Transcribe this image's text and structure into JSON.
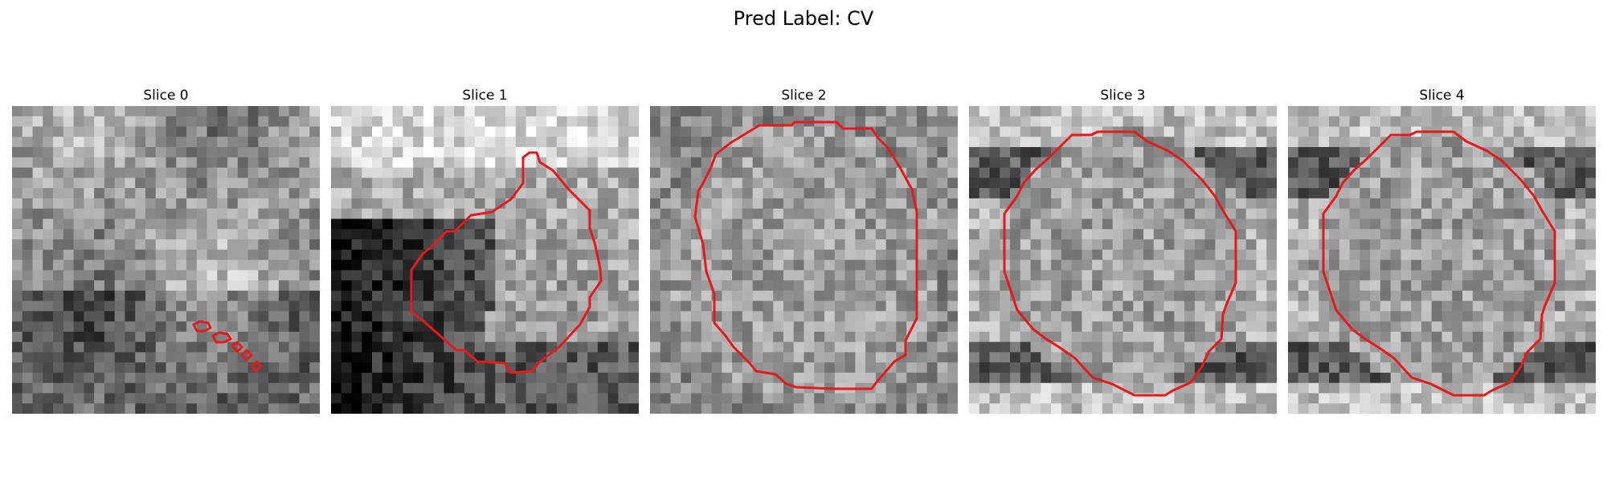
{
  "figure": {
    "title": "Pred Label: CV",
    "contour_color": "#e41a1c"
  },
  "slices": [
    {
      "label": "Slice 0",
      "seed": 11,
      "style": "cloudy"
    },
    {
      "label": "Slice 1",
      "seed": 23,
      "style": "dark-lower-left"
    },
    {
      "label": "Slice 2",
      "seed": 37,
      "style": "uniform"
    },
    {
      "label": "Slice 3",
      "seed": 41,
      "style": "dark-bands"
    },
    {
      "label": "Slice 4",
      "seed": 53,
      "style": "dark-bands"
    }
  ]
}
